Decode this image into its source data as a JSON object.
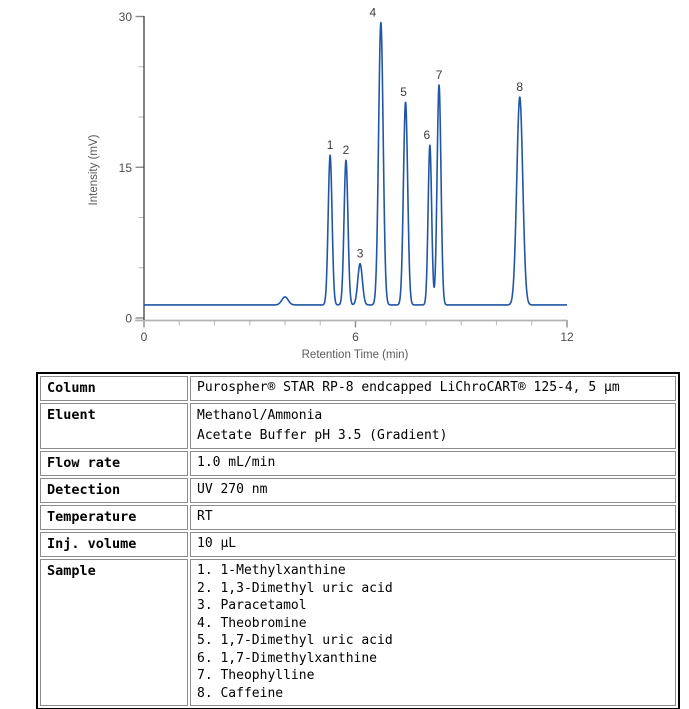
{
  "chart_data": {
    "type": "line",
    "title": "",
    "xlabel": "Retention Time (min)",
    "ylabel": "Intensity (mV)",
    "xlim": [
      0,
      12
    ],
    "ylim": [
      0,
      30
    ],
    "x_major_ticks": [
      0,
      6,
      12
    ],
    "x_minor_tick_step": 1,
    "y_major_ticks": [
      0,
      15,
      30
    ],
    "y_minor_tick_step": 5,
    "grid": "off",
    "legend": "none",
    "line_color": "#2156a5",
    "baseline_mV": 1.3,
    "system_artifact": {
      "t_min": 4.0,
      "apex_mV": 2.1,
      "sigma_min": 0.09
    },
    "peaks": [
      {
        "n": "1",
        "t_min": 5.28,
        "apex_mV": 16.2,
        "sigma_min": 0.055,
        "label_dx": 0,
        "compound": "1-Methylxanthine"
      },
      {
        "n": "2",
        "t_min": 5.73,
        "apex_mV": 15.7,
        "sigma_min": 0.055,
        "label_dx": 0,
        "compound": "1,3-Dimethyl uric acid"
      },
      {
        "n": "3",
        "t_min": 6.13,
        "apex_mV": 5.4,
        "sigma_min": 0.065,
        "label_dx": 0,
        "compound": "Paracetamol"
      },
      {
        "n": "4",
        "t_min": 6.72,
        "apex_mV": 29.4,
        "sigma_min": 0.065,
        "label_dx": -8,
        "compound": "Theobromine"
      },
      {
        "n": "5",
        "t_min": 7.42,
        "apex_mV": 21.5,
        "sigma_min": 0.06,
        "label_dx": -2,
        "compound": "1,7-Dimethyl uric acid"
      },
      {
        "n": "6",
        "t_min": 8.11,
        "apex_mV": 17.2,
        "sigma_min": 0.05,
        "label_dx": -3,
        "compound": "1,7-Dimethylxanthine"
      },
      {
        "n": "7",
        "t_min": 8.37,
        "apex_mV": 23.2,
        "sigma_min": 0.055,
        "label_dx": 0,
        "compound": "Theophylline"
      },
      {
        "n": "8",
        "t_min": 10.66,
        "apex_mV": 22.0,
        "sigma_min": 0.085,
        "label_dx": 0,
        "compound": "Caffeine"
      }
    ]
  },
  "table": {
    "rows": [
      {
        "key": "column",
        "label": "Column",
        "lines": [
          "Purospher® STAR RP-8 endcapped LiChroCART® 125-4, 5 µm"
        ]
      },
      {
        "key": "eluent",
        "label": "Eluent",
        "lines": [
          "Methanol/Ammonia",
          "Acetate Buffer pH 3.5 (Gradient)"
        ]
      },
      {
        "key": "flow-rate",
        "label": "Flow rate",
        "lines": [
          "1.0 mL/min"
        ]
      },
      {
        "key": "detection",
        "label": "Detection",
        "lines": [
          "UV 270 nm"
        ]
      },
      {
        "key": "temperature",
        "label": "Temperature",
        "lines": [
          "RT"
        ]
      },
      {
        "key": "inj-volume",
        "label": "Inj. volume",
        "lines": [
          "10 µL"
        ]
      },
      {
        "key": "sample",
        "label": "Sample",
        "lines": [
          "1. 1-Methylxanthine",
          "2. 1,3-Dimethyl uric acid",
          "3. Paracetamol",
          "4. Theobromine",
          "5. 1,7-Dimethyl uric acid",
          "6. 1,7-Dimethylxanthine",
          "7. Theophylline",
          "8. Caffeine"
        ]
      }
    ]
  }
}
